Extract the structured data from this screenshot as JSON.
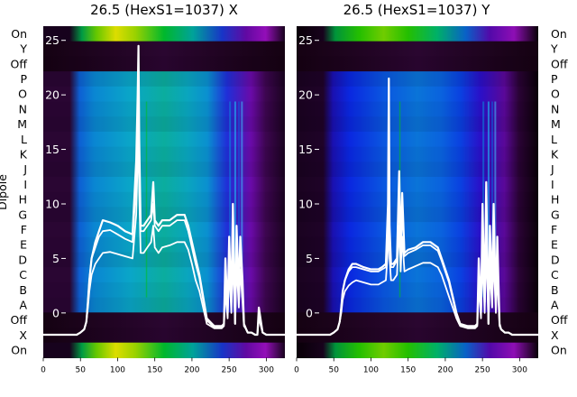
{
  "chart_data": [
    {
      "type": "heatmap",
      "title": "26.5 (HexS1=1037) X",
      "ylabel": "Dipole",
      "row_labels": [
        "On",
        "Y",
        "Off",
        "P",
        "O",
        "N",
        "M",
        "L",
        "K",
        "J",
        "I",
        "H",
        "G",
        "F",
        "E",
        "D",
        "C",
        "B",
        "A",
        "Off",
        "X",
        "On"
      ],
      "x_ticks": [
        0,
        50,
        100,
        150,
        200,
        250,
        300
      ],
      "xlim": [
        0,
        325
      ],
      "heat_colormap": "nipy_spectral",
      "overlay": {
        "type": "line",
        "y_ticks": [
          0,
          5,
          10,
          15,
          20,
          25
        ],
        "ylim": [
          -4.1,
          26.3
        ],
        "x": [
          0,
          40,
          45,
          50,
          55,
          58,
          60,
          62,
          65,
          70,
          75,
          80,
          90,
          100,
          110,
          120,
          125,
          127,
          128,
          129,
          131,
          135,
          140,
          145,
          148,
          150,
          155,
          160,
          170,
          180,
          190,
          195,
          200,
          205,
          210,
          215,
          220,
          230,
          240,
          243,
          245,
          248,
          250,
          253,
          255,
          258,
          260,
          263,
          265,
          268,
          270,
          273,
          275,
          280,
          285,
          288,
          290,
          295,
          300,
          310,
          325
        ],
        "series": [
          {
            "values": [
              -2,
              -2,
              -2,
              -1.8,
              -1.5,
              -0.8,
              1,
              3,
              5,
              6.5,
              7.5,
              8.5,
              8.3,
              8,
              7.5,
              7.2,
              14,
              20,
              24.5,
              16,
              8,
              8,
              8.5,
              9,
              12,
              8.5,
              8,
              8.5,
              8.5,
              9,
              9,
              8,
              6.5,
              5,
              3.5,
              1.5,
              -0.5,
              -1.2,
              -1.2,
              -1,
              5,
              0,
              7,
              1,
              10,
              -1,
              8,
              2,
              7,
              3,
              -1,
              -1.5,
              -1.8,
              -1.8,
              -2,
              -2,
              0.5,
              -1.8,
              -2,
              -2,
              -2
            ]
          },
          {
            "values": [
              -2,
              -2,
              -2,
              -1.8,
              -1.5,
              -0.8,
              1,
              3,
              5,
              6,
              7,
              7.5,
              7.6,
              7.2,
              6.8,
              6.5,
              12,
              18,
              21,
              14,
              7.5,
              7.5,
              8,
              8.5,
              10,
              8,
              7.5,
              8,
              8,
              8.5,
              8.5,
              7.5,
              6,
              4.5,
              3.2,
              1.2,
              -0.7,
              -1.3,
              -1.3,
              -1,
              4,
              0,
              6,
              0.5,
              8,
              -1,
              7,
              1.5,
              6,
              2.5,
              -1,
              -1.5,
              -1.8,
              -1.8,
              -2,
              -2,
              0,
              -1.8,
              -2,
              -2,
              -2
            ]
          },
          {
            "values": [
              -2,
              -2,
              -2,
              -1.8,
              -1.5,
              -0.8,
              0.5,
              2,
              3.5,
              4.5,
              5,
              5.5,
              5.6,
              5.4,
              5.2,
              5,
              9,
              14,
              17,
              11,
              5.5,
              5.5,
              6,
              6.5,
              8,
              6,
              5.5,
              6,
              6.2,
              6.5,
              6.5,
              5.8,
              4.5,
              3,
              2,
              0.5,
              -1,
              -1.4,
              -1.4,
              -1.2,
              2,
              -0.5,
              4,
              0,
              5,
              -1,
              4.5,
              0.5,
              4,
              1,
              -1.2,
              -1.5,
              -1.8,
              -1.8,
              -2,
              -2,
              -0.5,
              -1.8,
              -2,
              -2,
              -2
            ]
          }
        ]
      }
    },
    {
      "type": "heatmap",
      "title": "26.5 (HexS1=1037) Y",
      "row_labels": [
        "On",
        "Y",
        "Off",
        "P",
        "O",
        "N",
        "M",
        "L",
        "K",
        "J",
        "I",
        "H",
        "G",
        "F",
        "E",
        "D",
        "C",
        "B",
        "A",
        "Off",
        "X",
        "On"
      ],
      "x_ticks": [
        0,
        50,
        100,
        150,
        200,
        250,
        300
      ],
      "xlim": [
        0,
        325
      ],
      "heat_colormap": "nipy_spectral",
      "overlay": {
        "type": "line",
        "y_ticks": [
          0,
          5,
          10,
          15,
          20,
          25
        ],
        "ylim": [
          -4.1,
          26.3
        ],
        "x": [
          0,
          40,
          45,
          50,
          55,
          58,
          60,
          62,
          65,
          70,
          75,
          80,
          90,
          100,
          110,
          115,
          120,
          123,
          124,
          125,
          127,
          130,
          135,
          138,
          140,
          142,
          145,
          150,
          160,
          170,
          180,
          190,
          195,
          200,
          205,
          210,
          215,
          220,
          230,
          240,
          243,
          245,
          248,
          250,
          253,
          255,
          258,
          260,
          263,
          265,
          268,
          270,
          273,
          275,
          280,
          285,
          290,
          295,
          300,
          310,
          325
        ],
        "series": [
          {
            "values": [
              -2,
              -2,
              -2,
              -1.8,
              -1.5,
              -0.8,
              0.5,
              2,
              3,
              4,
              4.5,
              4.5,
              4.2,
              4,
              4,
              4.2,
              4.5,
              10,
              21.5,
              8,
              4.5,
              4.5,
              5,
              13,
              5.5,
              11,
              5.5,
              5.8,
              6,
              6.5,
              6.5,
              6,
              5,
              4,
              3,
              1.5,
              0,
              -1,
              -1.2,
              -1.2,
              -1,
              5,
              0,
              10,
              1,
              12,
              -1,
              8,
              2,
              10,
              1,
              7,
              -1,
              -1.5,
              -1.8,
              -1.8,
              -2,
              -2,
              -2,
              -2,
              -2
            ]
          },
          {
            "values": [
              -2,
              -2,
              -2,
              -1.8,
              -1.5,
              -0.8,
              0.5,
              2,
              3,
              3.8,
              4.2,
              4.2,
              4,
              3.8,
              3.8,
              4,
              4.2,
              9,
              19,
              7,
              4.2,
              4.2,
              4.8,
              11,
              5.2,
              9.5,
              5.2,
              5.5,
              5.8,
              6.2,
              6.2,
              5.7,
              4.8,
              3.8,
              2.8,
              1.3,
              -0.2,
              -1.1,
              -1.3,
              -1.3,
              -1,
              4,
              0,
              8,
              0.5,
              10,
              -1,
              6.5,
              1.5,
              8,
              0.5,
              6,
              -1,
              -1.5,
              -1.8,
              -1.8,
              -2,
              -2,
              -2,
              -2,
              -2
            ]
          },
          {
            "values": [
              -2,
              -2,
              -2,
              -1.8,
              -1.5,
              -0.8,
              0,
              1.2,
              2,
              2.5,
              2.8,
              3,
              2.8,
              2.6,
              2.6,
              2.8,
              3,
              6,
              13,
              5,
              3,
              3,
              3.5,
              8,
              3.8,
              7,
              3.8,
              4,
              4.3,
              4.6,
              4.6,
              4.2,
              3.5,
              2.5,
              1.5,
              0.5,
              -0.5,
              -1.2,
              -1.4,
              -1.4,
              -1.2,
              2.5,
              -0.5,
              5,
              0,
              6,
              -1,
              4,
              0.5,
              5,
              0,
              3.5,
              -1.2,
              -1.5,
              -1.8,
              -1.8,
              -2,
              -2,
              -2,
              -2,
              -2
            ]
          }
        ]
      }
    }
  ]
}
